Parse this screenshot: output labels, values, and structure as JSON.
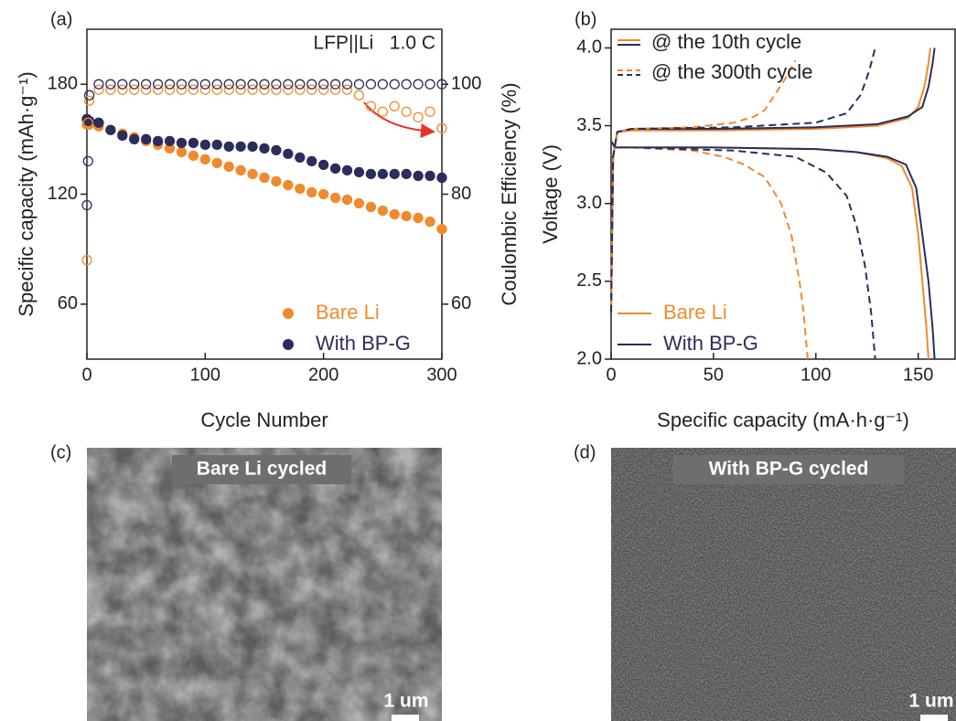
{
  "chart_data": [
    {
      "type": "scatter",
      "panel_label": "(a)",
      "annotation": "LFP||Li   1.0 C",
      "xlabel": "Cycle Number",
      "ylabel": "Specific capacity (mAh·g⁻¹)",
      "y2label": "Coulombic Efficiency (%)",
      "xlim": [
        0,
        300
      ],
      "xticks": [
        0,
        100,
        200,
        300
      ],
      "ylim": [
        30,
        210
      ],
      "yticks": [
        60,
        120,
        180
      ],
      "y2lim": [
        50,
        110
      ],
      "y2ticks": [
        60,
        80,
        100
      ],
      "x": [
        0,
        1,
        2,
        10,
        20,
        30,
        40,
        50,
        60,
        70,
        80,
        90,
        100,
        110,
        120,
        130,
        140,
        150,
        160,
        170,
        180,
        190,
        200,
        210,
        220,
        230,
        240,
        250,
        260,
        270,
        280,
        290,
        300
      ],
      "series": [
        {
          "name": "Bare Li",
          "color": "#f08a2c",
          "marker": "filled",
          "values": [
            158,
            159,
            158,
            157,
            155,
            153,
            151,
            149,
            147,
            145,
            143,
            141,
            139,
            137,
            135,
            133,
            131,
            129,
            127,
            125,
            123,
            121,
            120,
            118,
            117,
            115,
            113,
            111,
            109,
            108,
            107,
            105,
            101
          ]
        },
        {
          "name": "With BP-G",
          "color": "#2b2d5c",
          "marker": "filled",
          "values": [
            161,
            160,
            160,
            159,
            155,
            152,
            150,
            150,
            149,
            149,
            148,
            148,
            147,
            147,
            146,
            146,
            146,
            145,
            144,
            142,
            140,
            138,
            136,
            134,
            133,
            132,
            131,
            131,
            131,
            131,
            130,
            130,
            129
          ]
        },
        {
          "color": "#f08a2c",
          "marker": "open",
          "axis": "y2",
          "values": [
            68,
            93,
            97,
            99,
            99,
            99,
            99,
            99,
            99,
            99,
            99,
            99,
            99,
            99,
            99,
            99,
            99,
            99,
            99,
            99,
            99,
            99,
            99,
            99,
            99,
            98,
            96,
            95,
            96,
            95,
            94,
            95,
            92
          ]
        },
        {
          "color": "#2b2d5c",
          "marker": "open",
          "axis": "y2",
          "values": [
            78,
            86,
            98,
            100,
            100,
            100,
            100,
            100,
            100,
            100,
            100,
            100,
            100,
            100,
            100,
            100,
            100,
            100,
            100,
            100,
            100,
            100,
            100,
            100,
            100,
            100,
            100,
            100,
            100,
            100,
            100,
            100,
            100
          ]
        }
      ]
    },
    {
      "type": "line",
      "panel_label": "(b)",
      "xlabel": "Specific capacity (mA·h·g⁻¹)",
      "ylabel": "Voltage (V)",
      "xlim": [
        0,
        168
      ],
      "xticks": [
        0,
        50,
        100,
        150
      ],
      "ylim": [
        2,
        4.12
      ],
      "yticks": [
        {
          "value": 2,
          "label": "2.0"
        },
        2.5,
        {
          "value": 3,
          "label": "3.0"
        },
        3.5,
        {
          "value": 4,
          "label": "4.0"
        }
      ],
      "legend_colors": [
        {
          "name": "Bare Li",
          "color": "#f08a2c"
        },
        {
          "name": "With BP-G",
          "color": "#2b2d5c"
        }
      ],
      "legend_styles": [
        {
          "name": "@ the 10th cycle",
          "dash": false
        },
        {
          "name": "@ the 300th cycle",
          "dash": true
        }
      ],
      "series": [
        {
          "color": "#f08a2c",
          "dash": false,
          "x": [
            0,
            1,
            3,
            10,
            50,
            100,
            130,
            145,
            150,
            153,
            155,
            156
          ],
          "values": [
            2.35,
            3.3,
            3.46,
            3.47,
            3.47,
            3.48,
            3.5,
            3.55,
            3.62,
            3.75,
            3.9,
            4.0
          ]
        },
        {
          "color": "#f08a2c",
          "dash": false,
          "x": [
            0,
            2,
            10,
            50,
            100,
            120,
            135,
            142,
            147,
            150,
            152,
            154,
            155
          ],
          "values": [
            3.4,
            3.36,
            3.36,
            3.36,
            3.35,
            3.33,
            3.29,
            3.24,
            3.1,
            2.8,
            2.5,
            2.2,
            2.0
          ]
        },
        {
          "color": "#2b2d5c",
          "dash": false,
          "x": [
            0,
            1,
            3,
            10,
            50,
            100,
            130,
            145,
            152,
            155,
            157,
            158
          ],
          "values": [
            2.3,
            3.3,
            3.46,
            3.48,
            3.48,
            3.49,
            3.51,
            3.56,
            3.62,
            3.75,
            3.9,
            4.0
          ]
        },
        {
          "color": "#2b2d5c",
          "dash": false,
          "x": [
            0,
            2,
            10,
            50,
            100,
            120,
            135,
            144,
            149,
            152,
            155,
            157,
            158
          ],
          "values": [
            3.4,
            3.36,
            3.36,
            3.36,
            3.35,
            3.33,
            3.3,
            3.25,
            3.1,
            2.8,
            2.5,
            2.2,
            2.0
          ]
        },
        {
          "color": "#f08a2c",
          "dash": true,
          "x": [
            0,
            1,
            3,
            10,
            40,
            60,
            70,
            75,
            80,
            85,
            90
          ],
          "values": [
            2.35,
            3.3,
            3.46,
            3.48,
            3.49,
            3.52,
            3.56,
            3.6,
            3.7,
            3.8,
            3.92
          ]
        },
        {
          "color": "#f08a2c",
          "dash": true,
          "x": [
            0,
            2,
            10,
            40,
            55,
            65,
            75,
            83,
            88,
            92,
            94,
            96
          ],
          "values": [
            3.4,
            3.36,
            3.36,
            3.34,
            3.3,
            3.25,
            3.17,
            3.0,
            2.8,
            2.5,
            2.3,
            2.0
          ]
        },
        {
          "color": "#2b2d5c",
          "dash": true,
          "x": [
            0,
            1,
            3,
            10,
            60,
            100,
            115,
            122,
            126,
            128,
            129
          ],
          "values": [
            2.3,
            3.3,
            3.46,
            3.48,
            3.49,
            3.52,
            3.58,
            3.7,
            3.85,
            3.95,
            4.0
          ]
        },
        {
          "color": "#2b2d5c",
          "dash": true,
          "x": [
            0,
            2,
            10,
            60,
            90,
            105,
            115,
            120,
            124,
            127,
            129
          ],
          "values": [
            3.4,
            3.36,
            3.36,
            3.34,
            3.3,
            3.2,
            3.05,
            2.85,
            2.6,
            2.3,
            2.0
          ]
        }
      ]
    }
  ],
  "panels": [
    {
      "label": "(c)",
      "caption": "Bare Li cycled",
      "scale_bar": "1 um"
    },
    {
      "label": "(d)",
      "caption": "With BP-G cycled",
      "scale_bar": "1 um"
    }
  ]
}
